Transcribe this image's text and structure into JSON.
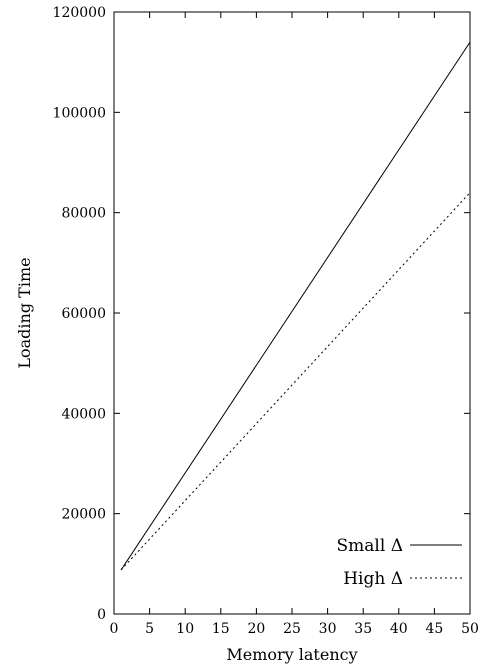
{
  "chart_data": {
    "type": "line",
    "title": "",
    "xlabel": "Memory latency",
    "ylabel": "Loading Time",
    "xlim": [
      0,
      50
    ],
    "ylim": [
      0,
      120000
    ],
    "x_ticks": [
      0,
      5,
      10,
      15,
      20,
      25,
      30,
      35,
      40,
      45,
      50
    ],
    "y_ticks": [
      0,
      20000,
      40000,
      60000,
      80000,
      100000,
      120000
    ],
    "grid": false,
    "legend_position": "bottom-right",
    "series": [
      {
        "name": "Small Δ",
        "style": "solid",
        "color": "#000000",
        "x": [
          1,
          50
        ],
        "y": [
          8800,
          114000
        ]
      },
      {
        "name": "High Δ",
        "style": "dotted",
        "color": "#000000",
        "x": [
          1,
          50
        ],
        "y": [
          8800,
          84000
        ]
      }
    ]
  }
}
